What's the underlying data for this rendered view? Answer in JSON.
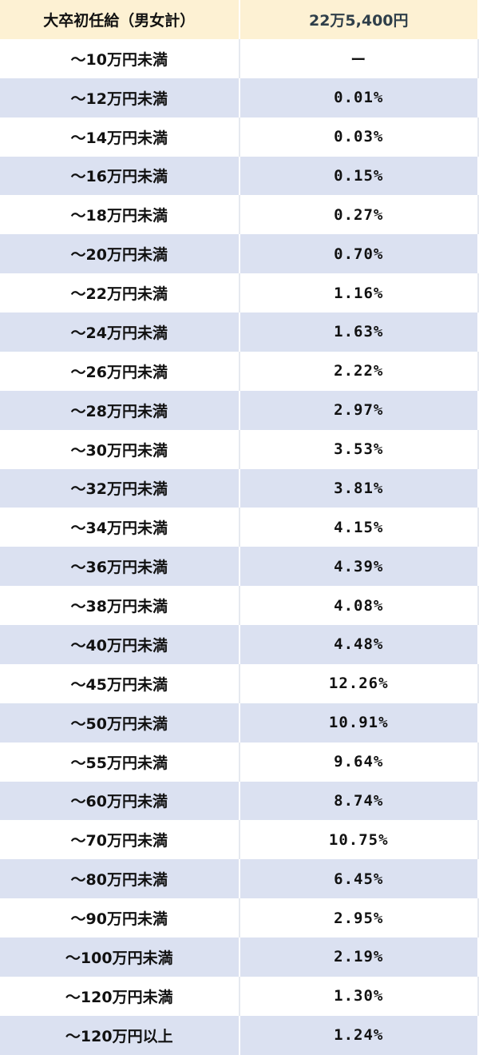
{
  "header": {
    "label": "大卒初任給（男女計）",
    "value": "22万5,400円"
  },
  "rows": [
    {
      "range": "～10万円未満",
      "percent": "ー"
    },
    {
      "range": "～12万円未満",
      "percent": "0.01%"
    },
    {
      "range": "～14万円未満",
      "percent": "0.03%"
    },
    {
      "range": "～16万円未満",
      "percent": "0.15%"
    },
    {
      "range": "～18万円未満",
      "percent": "0.27%"
    },
    {
      "range": "～20万円未満",
      "percent": "0.70%"
    },
    {
      "range": "～22万円未満",
      "percent": "1.16%"
    },
    {
      "range": "～24万円未満",
      "percent": "1.63%"
    },
    {
      "range": "～26万円未満",
      "percent": "2.22%"
    },
    {
      "range": "～28万円未満",
      "percent": "2.97%"
    },
    {
      "range": "～30万円未満",
      "percent": "3.53%"
    },
    {
      "range": "～32万円未満",
      "percent": "3.81%"
    },
    {
      "range": "～34万円未満",
      "percent": "4.15%"
    },
    {
      "range": "～36万円未満",
      "percent": "4.39%"
    },
    {
      "range": "～38万円未満",
      "percent": "4.08%"
    },
    {
      "range": "～40万円未満",
      "percent": "4.48%"
    },
    {
      "range": "～45万円未満",
      "percent": "12.26%"
    },
    {
      "range": "～50万円未満",
      "percent": "10.91%"
    },
    {
      "range": "～55万円未満",
      "percent": "9.64%"
    },
    {
      "range": "～60万円未満",
      "percent": "8.74%"
    },
    {
      "range": "～70万円未満",
      "percent": "10.75%"
    },
    {
      "range": "～80万円未満",
      "percent": "6.45%"
    },
    {
      "range": "～90万円未満",
      "percent": "2.95%"
    },
    {
      "range": "～100万円未満",
      "percent": "2.19%"
    },
    {
      "range": "～120万円未満",
      "percent": "1.30%"
    },
    {
      "range": "～120万円以上",
      "percent": "1.24%"
    }
  ],
  "colors": {
    "header_bg": "#fdf1d3",
    "stripe_bg": "#dbe1f1"
  }
}
